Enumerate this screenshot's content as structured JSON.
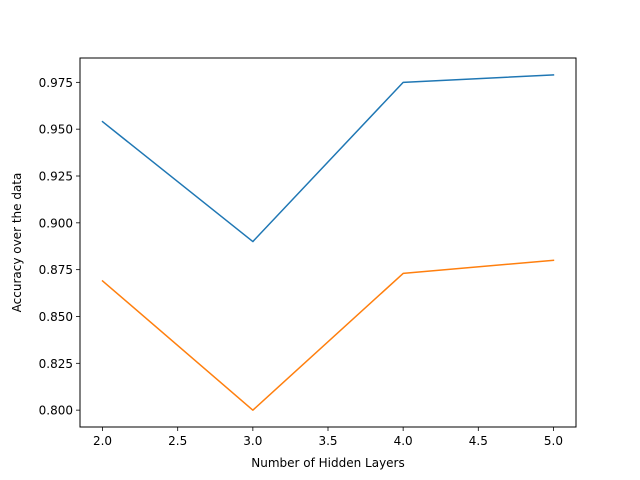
{
  "chart_data": {
    "type": "line",
    "title": "",
    "xlabel": "Number of Hidden Layers",
    "ylabel": "Accuracy over the data",
    "x": [
      2,
      3,
      4,
      5
    ],
    "xlim": [
      1.85,
      5.15
    ],
    "ylim": [
      0.791,
      0.988
    ],
    "xticks": [
      2.0,
      2.5,
      3.0,
      3.5,
      4.0,
      4.5,
      5.0
    ],
    "xtick_labels": [
      "2.0",
      "2.5",
      "3.0",
      "3.5",
      "4.0",
      "4.5",
      "5.0"
    ],
    "yticks": [
      0.8,
      0.825,
      0.85,
      0.875,
      0.9,
      0.925,
      0.95,
      0.975
    ],
    "ytick_labels": [
      "0.800",
      "0.825",
      "0.850",
      "0.875",
      "0.900",
      "0.925",
      "0.950",
      "0.975"
    ],
    "grid": false,
    "legend": "none",
    "series": [
      {
        "values": [
          0.954,
          0.89,
          0.975,
          0.979
        ],
        "color": "#1f77b4"
      },
      {
        "values": [
          0.869,
          0.8,
          0.873,
          0.88
        ],
        "color": "#ff7f0e"
      }
    ]
  }
}
